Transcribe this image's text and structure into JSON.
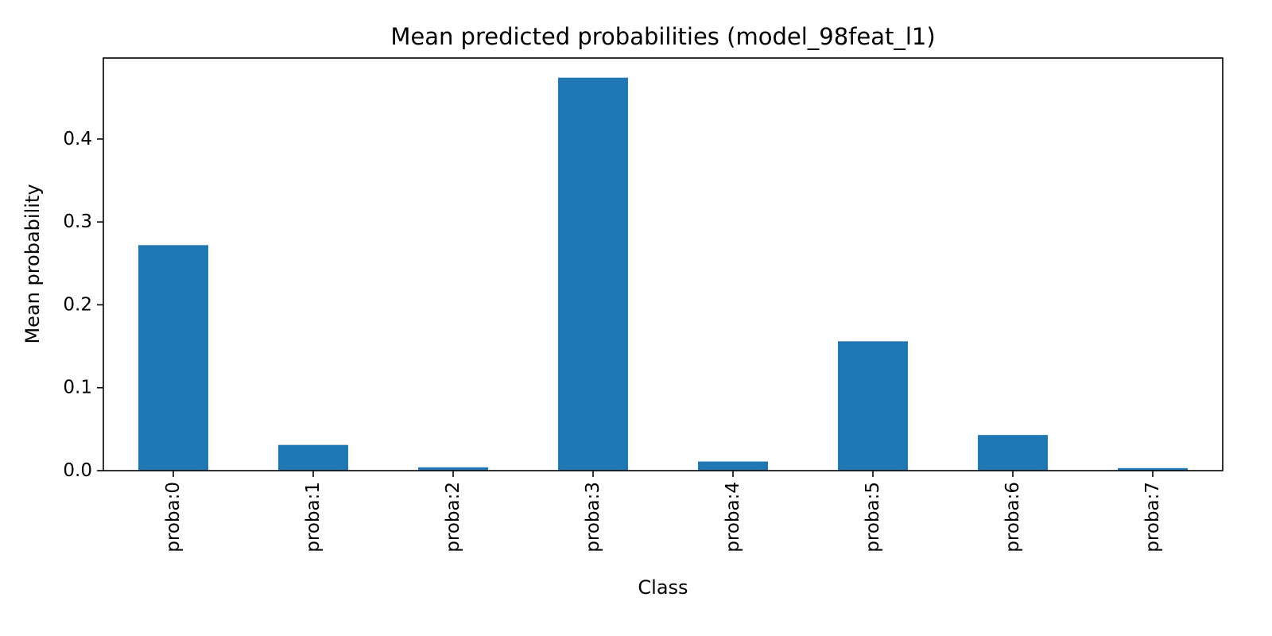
{
  "chart_data": {
    "type": "bar",
    "title": "Mean predicted probabilities (model_98feat_l1)",
    "xlabel": "Class",
    "ylabel": "Mean probability",
    "categories": [
      "proba:0",
      "proba:1",
      "proba:2",
      "proba:3",
      "proba:4",
      "proba:5",
      "proba:6",
      "proba:7"
    ],
    "values": [
      0.272,
      0.031,
      0.004,
      0.474,
      0.011,
      0.156,
      0.043,
      0.003
    ],
    "ylim": [
      0,
      0.4977
    ],
    "yticks": [
      0.0,
      0.1,
      0.2,
      0.3,
      0.4
    ],
    "ytick_labels": [
      "0.0",
      "0.1",
      "0.2",
      "0.3",
      "0.4"
    ],
    "bar_color": "#1f77b4",
    "grid": false,
    "legend": false
  }
}
